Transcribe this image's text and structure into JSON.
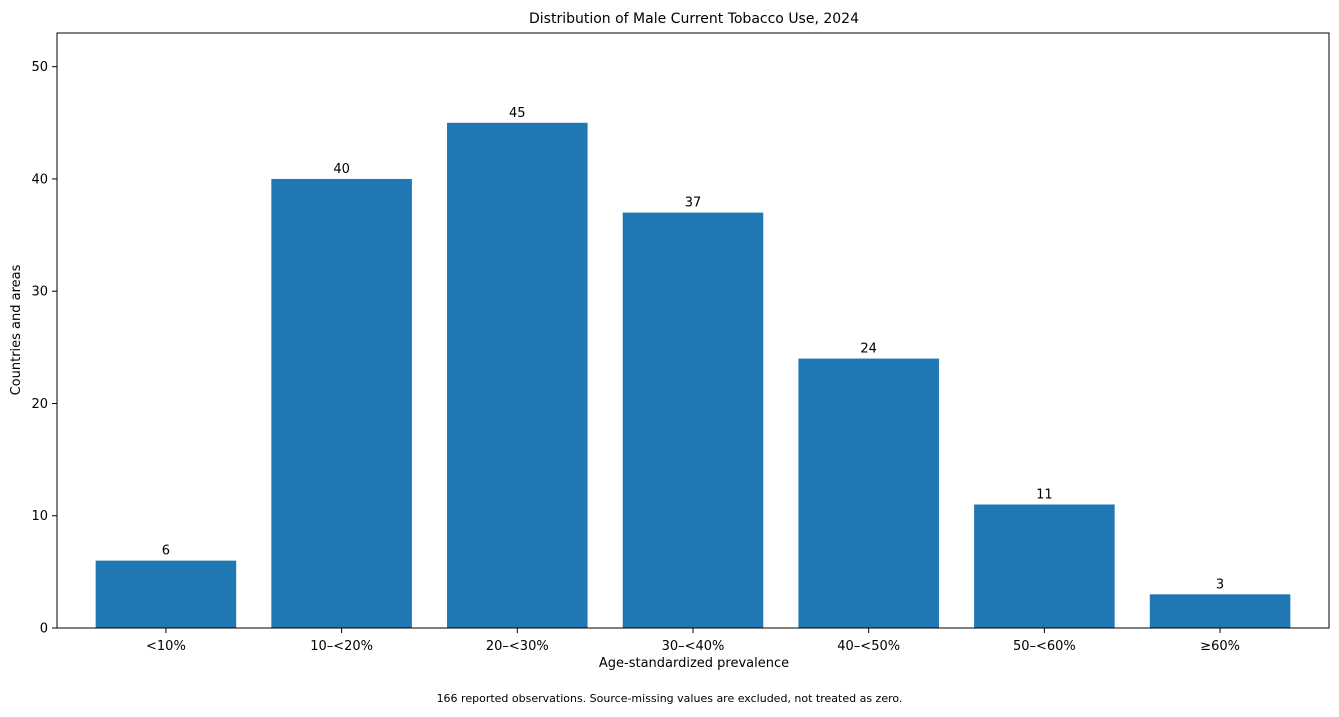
{
  "chart_data": {
    "type": "bar",
    "title": "Distribution of Male Current Tobacco Use, 2024",
    "xlabel": "Age-standardized prevalence",
    "ylabel": "Countries and areas",
    "categories": [
      "<10%",
      "10–<20%",
      "20–<30%",
      "30–<40%",
      "40–<50%",
      "50–<60%",
      "≥60%"
    ],
    "values": [
      6,
      40,
      45,
      37,
      24,
      11,
      3
    ],
    "data_labels": [
      "6",
      "40",
      "45",
      "37",
      "24",
      "11",
      "3"
    ],
    "ylim": [
      0,
      53
    ],
    "yticks": [
      0,
      10,
      20,
      30,
      40,
      50
    ],
    "bar_color": "#1f77b4",
    "grid": false,
    "legend": "none"
  },
  "footnote": "166 reported observations. Source-missing values are excluded, not treated as zero."
}
